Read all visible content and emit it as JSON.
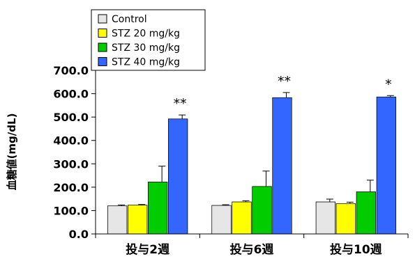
{
  "chart_data": {
    "type": "bar",
    "title": "",
    "xlabel": "",
    "ylabel": "血糖値(mg/dL)",
    "ylim": [
      0,
      700
    ],
    "yticks": [
      "0.0",
      "100.0",
      "200.0",
      "300.0",
      "400.0",
      "500.0",
      "600.0",
      "700.0"
    ],
    "categories": [
      "投与2週",
      "投与6週",
      "投与10週"
    ],
    "series": [
      {
        "name": "Control",
        "color": "#e6e6e6",
        "values": [
          120,
          122,
          137
        ],
        "errors": [
          4,
          3,
          12
        ]
      },
      {
        "name": "STZ 20 mg/kg",
        "color": "#ffff00",
        "values": [
          123,
          137,
          130
        ],
        "errors": [
          3,
          5,
          6
        ]
      },
      {
        "name": "STZ 30 mg/kg",
        "color": "#00cc00",
        "values": [
          222,
          203,
          180
        ],
        "errors": [
          68,
          66,
          50
        ]
      },
      {
        "name": "STZ 40 mg/kg",
        "color": "#3366ff",
        "values": [
          492,
          583,
          586
        ],
        "errors": [
          17,
          22,
          6
        ]
      }
    ],
    "annotations": [
      {
        "category": "投与2週",
        "series": "STZ 40 mg/kg",
        "text": "**"
      },
      {
        "category": "投与6週",
        "series": "STZ 40 mg/kg",
        "text": "**"
      },
      {
        "category": "投与10週",
        "series": "STZ 40 mg/kg",
        "text": "*"
      }
    ],
    "legend": "top-left",
    "grid": false
  }
}
